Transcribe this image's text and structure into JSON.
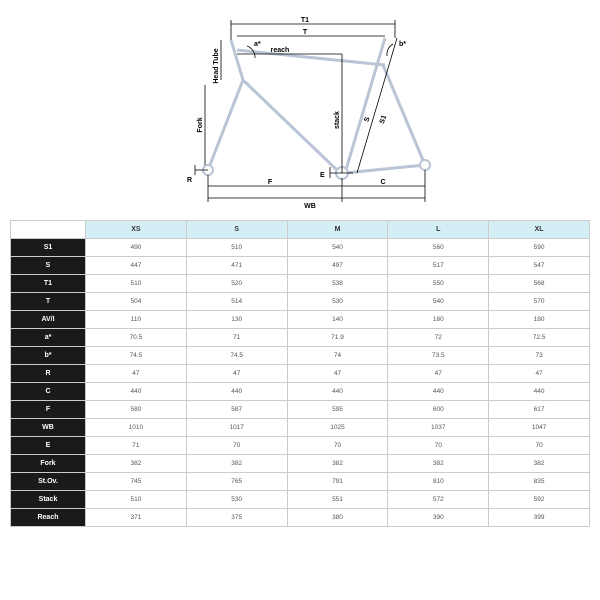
{
  "diagram": {
    "stroke_main": "#b9c4d4",
    "stroke_dim": "#000",
    "fill_bg": "#fff",
    "labels": {
      "T1": "T1",
      "T": "T",
      "a": "a*",
      "b": "b*",
      "reach": "reach",
      "HeadTube": "Head Tube",
      "Fork": "Fork",
      "stack": "stack",
      "S": "S",
      "S1": "S1",
      "R": "R",
      "F": "F",
      "E": "E",
      "C": "C",
      "WB": "WB"
    }
  },
  "table": {
    "header_bg": "#d4eef5",
    "label_bg": "#1a1a1a",
    "sizes": [
      "XS",
      "S",
      "M",
      "L",
      "XL"
    ],
    "rows": [
      {
        "label": "S1",
        "vals": [
          "490",
          "510",
          "540",
          "560",
          "590"
        ]
      },
      {
        "label": "S",
        "vals": [
          "447",
          "471",
          "497",
          "517",
          "547"
        ]
      },
      {
        "label": "T1",
        "vals": [
          "510",
          "520",
          "538",
          "550",
          "568"
        ]
      },
      {
        "label": "T",
        "vals": [
          "504",
          "514",
          "530",
          "540",
          "570"
        ]
      },
      {
        "label": "AV/I",
        "vals": [
          "110",
          "130",
          "140",
          "180",
          "180"
        ]
      },
      {
        "label": "a*",
        "vals": [
          "70.5",
          "71",
          "71.9",
          "72",
          "72.5"
        ]
      },
      {
        "label": "b*",
        "vals": [
          "74.5",
          "74.5",
          "74",
          "73.5",
          "73"
        ]
      },
      {
        "label": "R",
        "vals": [
          "47",
          "47",
          "47",
          "47",
          "47"
        ]
      },
      {
        "label": "C",
        "vals": [
          "440",
          "440",
          "440",
          "440",
          "440"
        ]
      },
      {
        "label": "F",
        "vals": [
          "580",
          "587",
          "595",
          "600",
          "617"
        ]
      },
      {
        "label": "WB",
        "vals": [
          "1010",
          "1017",
          "1025",
          "1037",
          "1047"
        ]
      },
      {
        "label": "E",
        "vals": [
          "71",
          "70",
          "70",
          "70",
          "70"
        ]
      },
      {
        "label": "Fork",
        "vals": [
          "382",
          "382",
          "382",
          "382",
          "382"
        ]
      },
      {
        "label": "St.Ov.",
        "vals": [
          "745",
          "765",
          "791",
          "810",
          "835"
        ]
      },
      {
        "label": "Stack",
        "vals": [
          "510",
          "530",
          "551",
          "572",
          "592"
        ]
      },
      {
        "label": "Reach",
        "vals": [
          "371",
          "375",
          "380",
          "390",
          "399"
        ]
      }
    ]
  }
}
